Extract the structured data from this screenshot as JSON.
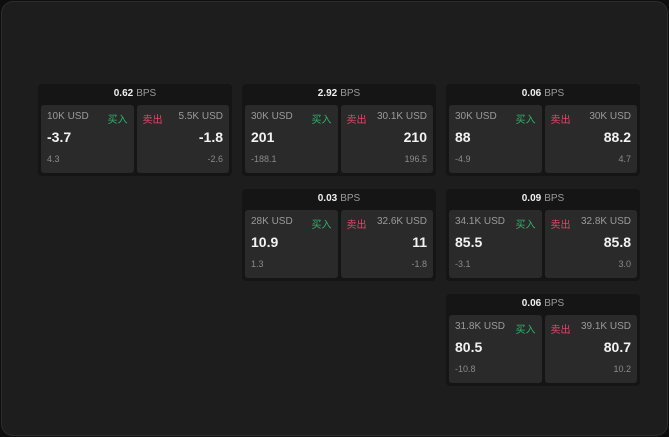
{
  "colors": {
    "buy": "#2fb36a",
    "sell": "#e2456b"
  },
  "buy_label": "买入",
  "sell_label": "卖出",
  "unit": "BPS",
  "widgets": [
    {
      "spread": "0.62",
      "bid": {
        "size": "10K USD",
        "price": "-3.7",
        "change": "4.3"
      },
      "ask": {
        "size": "5.5K USD",
        "price": "-1.8",
        "change": "-2.6"
      }
    },
    {
      "spread": "2.92",
      "bid": {
        "size": "30K USD",
        "price": "201",
        "change": "-188.1"
      },
      "ask": {
        "size": "30.1K USD",
        "price": "210",
        "change": "196.5"
      }
    },
    {
      "spread": "0.06",
      "bid": {
        "size": "30K USD",
        "price": "88",
        "change": "-4.9"
      },
      "ask": {
        "size": "30K USD",
        "price": "88.2",
        "change": "4.7"
      }
    },
    {
      "spread": "0.03",
      "bid": {
        "size": "28K USD",
        "price": "10.9",
        "change": "1.3"
      },
      "ask": {
        "size": "32.6K USD",
        "price": "11",
        "change": "-1.8"
      }
    },
    {
      "spread": "0.09",
      "bid": {
        "size": "34.1K USD",
        "price": "85.5",
        "change": "-3.1"
      },
      "ask": {
        "size": "32.8K USD",
        "price": "85.8",
        "change": "3.0"
      }
    },
    {
      "spread": "0.06",
      "bid": {
        "size": "31.8K USD",
        "price": "80.5",
        "change": "-10.8"
      },
      "ask": {
        "size": "39.1K USD",
        "price": "80.7",
        "change": "10.2"
      }
    }
  ]
}
